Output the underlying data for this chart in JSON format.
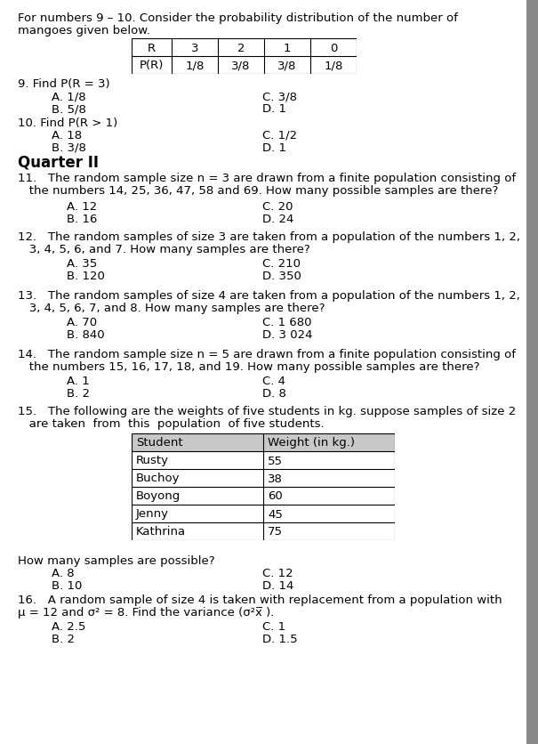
{
  "bg_color": "#ffffff",
  "fs": 9.5,
  "fs_bold": 11,
  "lm": 0.033,
  "intro_line1": "For numbers 9 – 10. Consider the probability distribution of the number of",
  "intro_line2": "mangoes given below.",
  "table1_headers": [
    "R",
    "3",
    "2",
    "1",
    "0"
  ],
  "table1_row": [
    "P(R)",
    "1/8",
    "3/8",
    "3/8",
    "1/8"
  ],
  "q9_text": "9. Find P(R = 3)",
  "q9_A": "A. 1/8",
  "q9_B": "B. 5/8",
  "q9_C": "C. 3/8",
  "q9_D": "D. 1",
  "q10_text": "10. Find P(R > 1)",
  "q10_A": "A. 18",
  "q10_B": "B. 3/8",
  "q10_C": "C. 1/2",
  "q10_D": "D. 1",
  "quarter_header": "Quarter II",
  "q11_line1": "11.   The random sample size n = 3 are drawn from a finite population consisting of",
  "q11_line2": "   the numbers 14, 25, 36, 47, 58 and 69. How many possible samples are there?",
  "q11_A": "A. 12",
  "q11_B": "B. 16",
  "q11_C": "C. 20",
  "q11_D": "D. 24",
  "q12_line1": "12.   The random samples of size 3 are taken from a population of the numbers 1, 2,",
  "q12_line2": "   3, 4, 5, 6, and 7. How many samples are there?",
  "q12_A": "A. 35",
  "q12_B": "B. 120",
  "q12_C": "C. 210",
  "q12_D": "D. 350",
  "q13_line1": "13.   The random samples of size 4 are taken from a population of the numbers 1, 2,",
  "q13_line2": "   3, 4, 5, 6, 7, and 8. How many samples are there?",
  "q13_A": "A. 70",
  "q13_B": "B. 840",
  "q13_C": "C. 1 680",
  "q13_D": "D. 3 024",
  "q14_line1": "14.   The random sample size n = 5 are drawn from a finite population consisting of",
  "q14_line2": "   the numbers 15, 16, 17, 18, and 19. How many possible samples are there?",
  "q14_A": "A. 1",
  "q14_B": "B. 2",
  "q14_C": "C. 4",
  "q14_D": "D. 8",
  "q15_line1": "15.   The following are the weights of five students in kg. suppose samples of size 2",
  "q15_line2": "   are taken  from  this  population  of five students.",
  "table2_headers": [
    "Student",
    "Weight (in kg.)"
  ],
  "table2_rows": [
    [
      "Rusty",
      "55"
    ],
    [
      "Buchoy",
      "38"
    ],
    [
      "Boyong",
      "60"
    ],
    [
      "Jenny",
      "45"
    ],
    [
      "Kathrina",
      "75"
    ]
  ],
  "q15_sub": "How many samples are possible?",
  "q15_A": "A. 8",
  "q15_B": "B. 10",
  "q15_C": "C. 12",
  "q15_D": "D. 14",
  "q16_line1": "16.   A random sample of size 4 is taken with replacement from a population with",
  "q16_line2": "μ = 12 and σ² = 8. Find the variance (σ²x̅ ).",
  "q16_A": "A. 2.5",
  "q16_B": "B. 2",
  "q16_C": "C. 1",
  "q16_D": "D. 1.5",
  "gray_bar_color": "#888888"
}
